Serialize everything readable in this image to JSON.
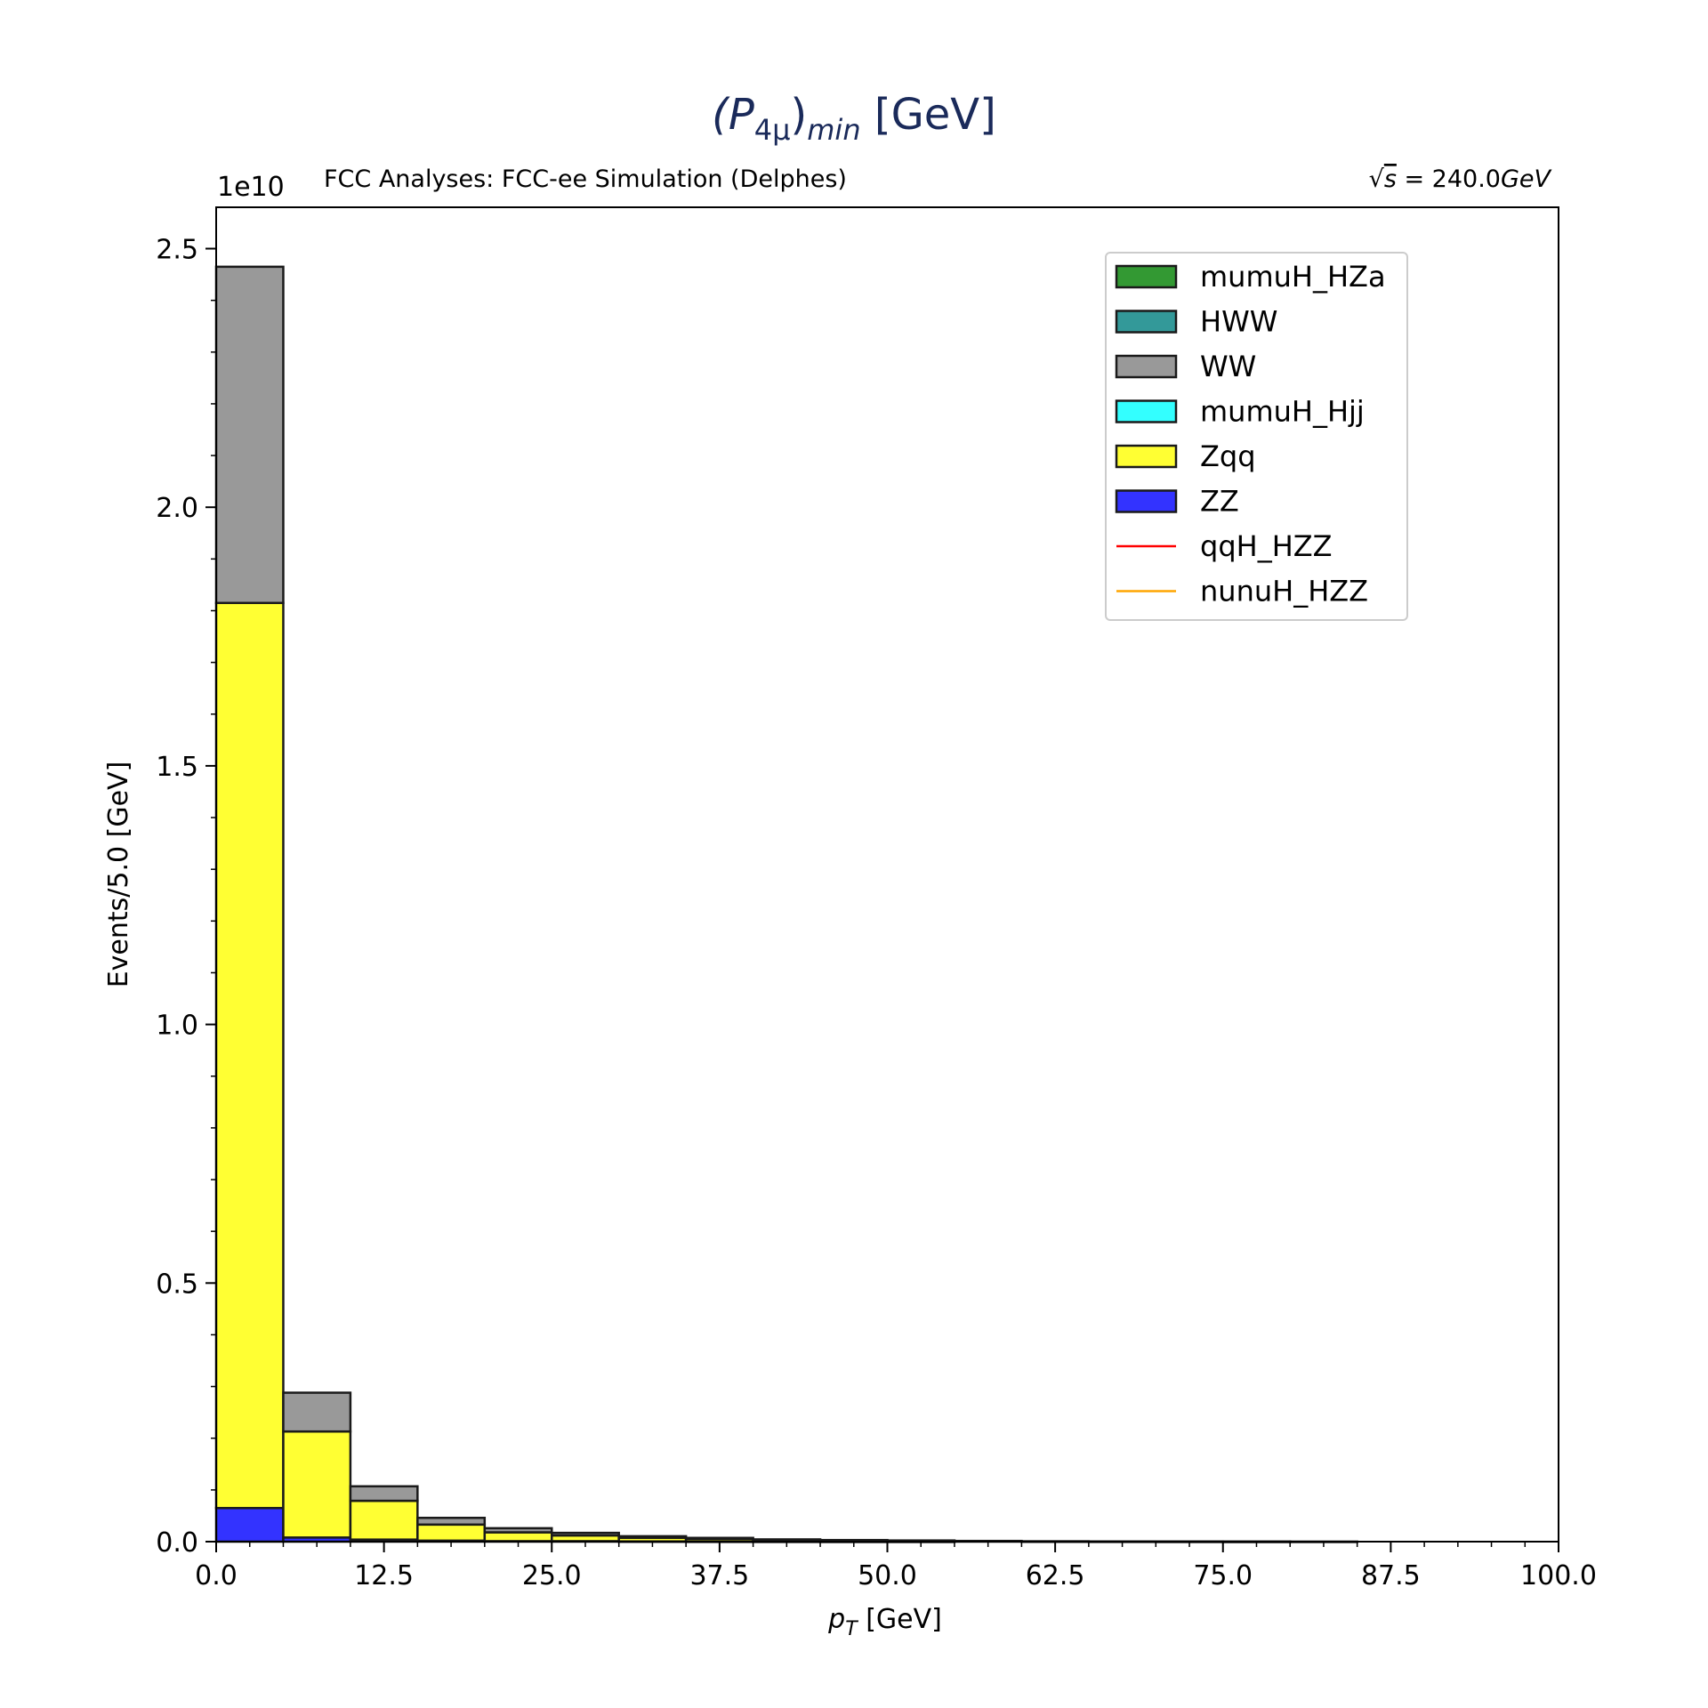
{
  "chart_data": {
    "type": "bar",
    "title_base": "(P",
    "title_sub": "4μ",
    "title_close": ")",
    "title_sub2": "min",
    "title_unit": " [GeV]",
    "header_left": "FCC Analyses: FCC-ee Simulation (Delphes)",
    "header_right_sym": "√",
    "header_right_s": "s",
    "header_right_eq": " = 240.0",
    "header_right_unit": "GeV",
    "xlabel_p": "p",
    "xlabel_sub": "T",
    "xlabel_unit": " [GeV]",
    "ylabel": "Events/5.0 [GeV]",
    "y_offset_text": "1e10",
    "xlim": [
      0,
      100
    ],
    "ylim": [
      0,
      2.58
    ],
    "y_scale_exponent": 10,
    "bin_width": 5.0,
    "x_ticks": [
      "0.0",
      "12.5",
      "25.0",
      "37.5",
      "50.0",
      "62.5",
      "75.0",
      "87.5",
      "100.0"
    ],
    "y_ticks": [
      "0.0",
      "0.5",
      "1.0",
      "1.5",
      "2.0",
      "2.5"
    ],
    "bin_edges": [
      0,
      5,
      10,
      15,
      20,
      25,
      30,
      35,
      40,
      45,
      50,
      55,
      60,
      65,
      70,
      75,
      80,
      85,
      90,
      95,
      100
    ],
    "stacked": true,
    "series": [
      {
        "name": "ZZ",
        "color": "#3333ff",
        "values": [
          0.065,
          0.008,
          0.004,
          0.002,
          0.001,
          0.001,
          0.0005,
          0.0003,
          0.0002,
          0.0001,
          0.0001,
          0,
          0,
          0,
          0,
          0,
          0,
          0,
          0,
          0
        ]
      },
      {
        "name": "Zqq",
        "color": "#ffff33",
        "values": [
          1.75,
          0.205,
          0.075,
          0.031,
          0.017,
          0.011,
          0.007,
          0.005,
          0.003,
          0.002,
          0.0015,
          0.001,
          0.0005,
          0.0003,
          0.0002,
          0.0001,
          0.0001,
          0,
          0,
          0
        ]
      },
      {
        "name": "mumuH_Hjj",
        "color": "#33ffff",
        "values": [
          0,
          0,
          0,
          0,
          0,
          0,
          0,
          0,
          0,
          0,
          0,
          0,
          0,
          0,
          0,
          0,
          0,
          0,
          0,
          0
        ]
      },
      {
        "name": "WW",
        "color": "#999999",
        "values": [
          0.65,
          0.075,
          0.028,
          0.013,
          0.008,
          0.005,
          0.003,
          0.002,
          0.0012,
          0.001,
          0.0007,
          0.0004,
          0.0002,
          0.0001,
          0.0001,
          0.0001,
          0,
          0,
          0,
          0
        ]
      },
      {
        "name": "HWW",
        "color": "#339999",
        "values": [
          0,
          0,
          0,
          0,
          0,
          0,
          0,
          0,
          0,
          0,
          0,
          0,
          0,
          0,
          0,
          0,
          0,
          0,
          0,
          0
        ]
      },
      {
        "name": "mumuH_HZa",
        "color": "#339933",
        "values": [
          0,
          0,
          0,
          0,
          0,
          0,
          0,
          0,
          0,
          0,
          0,
          0,
          0,
          0,
          0,
          0,
          0,
          0,
          0,
          0
        ]
      }
    ],
    "line_series": [
      {
        "name": "qqH_HZZ",
        "color": "#ff0000"
      },
      {
        "name": "nunuH_HZZ",
        "color": "#ffa500"
      }
    ],
    "legend": {
      "position": "top-right",
      "entries": [
        {
          "name": "mumuH_HZa",
          "kind": "patch",
          "color": "#339933"
        },
        {
          "name": "HWW",
          "kind": "patch",
          "color": "#339999"
        },
        {
          "name": "WW",
          "kind": "patch",
          "color": "#999999"
        },
        {
          "name": "mumuH_Hjj",
          "kind": "patch",
          "color": "#33ffff"
        },
        {
          "name": "Zqq",
          "kind": "patch",
          "color": "#ffff33"
        },
        {
          "name": "ZZ",
          "kind": "patch",
          "color": "#3333ff"
        },
        {
          "name": "qqH_HZZ",
          "kind": "line",
          "color": "#ff0000"
        },
        {
          "name": "nunuH_HZZ",
          "kind": "line",
          "color": "#ffa500"
        }
      ]
    },
    "title_color": "#1a2a5a",
    "grid": false
  }
}
